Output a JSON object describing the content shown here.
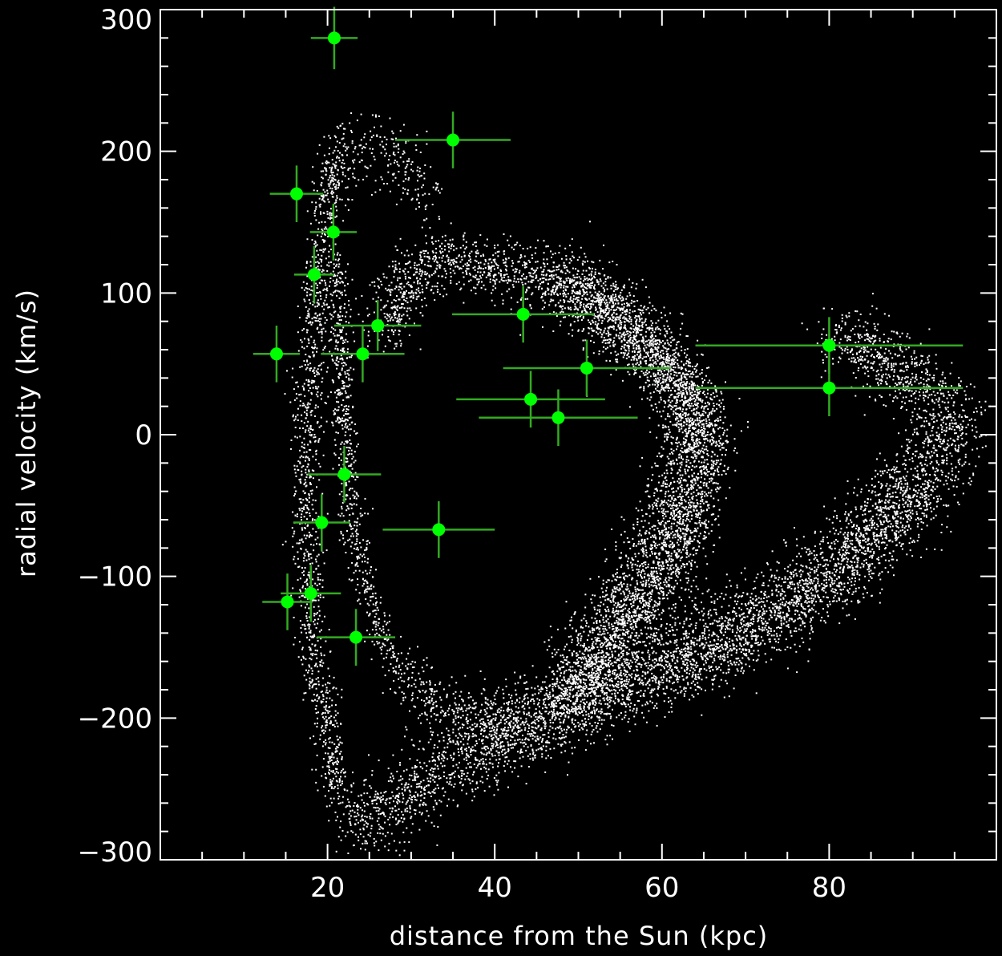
{
  "chart_data": {
    "type": "scatter",
    "xlabel": "distance from the Sun (kpc)",
    "ylabel": "radial velocity (km/s)",
    "xlim": [
      0,
      100
    ],
    "ylim": [
      -300,
      300
    ],
    "x_ticks": [
      20,
      40,
      60,
      80
    ],
    "y_ticks": [
      -300,
      -200,
      -100,
      0,
      100,
      200,
      300
    ],
    "grid": false,
    "colors": {
      "background": "#000000",
      "axes": "#ffffff",
      "simulation_points": "#ffffff",
      "observed_points": "#00ff00",
      "error_bars": "#33aa22"
    },
    "series": [
      {
        "role": "observed stars with error bars",
        "points": [
          {
            "x": 20.8,
            "y": 280,
            "xerr": 2.8,
            "yerr": 22
          },
          {
            "x": 35.0,
            "y": 208,
            "xerr": 6.9,
            "yerr": 20
          },
          {
            "x": 16.3,
            "y": 170,
            "xerr": 3.2,
            "yerr": 20
          },
          {
            "x": 20.7,
            "y": 143,
            "xerr": 2.8,
            "yerr": 20
          },
          {
            "x": 18.4,
            "y": 113,
            "xerr": 2.4,
            "yerr": 20
          },
          {
            "x": 43.4,
            "y": 85,
            "xerr": 8.5,
            "yerr": 20
          },
          {
            "x": 26.0,
            "y": 77,
            "xerr": 5.2,
            "yerr": 18
          },
          {
            "x": 13.9,
            "y": 57,
            "xerr": 2.8,
            "yerr": 20
          },
          {
            "x": 24.2,
            "y": 57,
            "xerr": 5.0,
            "yerr": 20
          },
          {
            "x": 80.0,
            "y": 63,
            "xerr": 16.0,
            "yerr": 20
          },
          {
            "x": 51.0,
            "y": 47,
            "xerr": 10.0,
            "yerr": 20
          },
          {
            "x": 80.0,
            "y": 33,
            "xerr": 16.0,
            "yerr": 20
          },
          {
            "x": 44.3,
            "y": 25,
            "xerr": 8.9,
            "yerr": 20
          },
          {
            "x": 47.6,
            "y": 12,
            "xerr": 9.5,
            "yerr": 20
          },
          {
            "x": 22.0,
            "y": -28,
            "xerr": 4.4,
            "yerr": 20
          },
          {
            "x": 19.3,
            "y": -62,
            "xerr": 3.4,
            "yerr": 20
          },
          {
            "x": 33.3,
            "y": -67,
            "xerr": 6.7,
            "yerr": 20
          },
          {
            "x": 15.2,
            "y": -118,
            "xerr": 3.0,
            "yerr": 20
          },
          {
            "x": 18.0,
            "y": -112,
            "xerr": 3.6,
            "yerr": 20
          },
          {
            "x": 23.4,
            "y": -143,
            "xerr": 4.7,
            "yerr": 20
          }
        ]
      },
      {
        "role": "simulated stream particles",
        "arms": [
          {
            "name": "inner loop left",
            "path": [
              [
                20.5,
                195
              ],
              [
                19.5,
                150
              ],
              [
                18.6,
                100
              ],
              [
                17.9,
                50
              ],
              [
                17.5,
                0
              ],
              [
                17.4,
                -50
              ],
              [
                17.6,
                -100
              ],
              [
                18.2,
                -150
              ],
              [
                19.6,
                -200
              ],
              [
                21.2,
                -255
              ]
            ],
            "sx": 0.9,
            "sy": 10,
            "n": 1200
          },
          {
            "name": "inner loop right",
            "path": [
              [
                21.0,
                120
              ],
              [
                21.5,
                60
              ],
              [
                22.0,
                0
              ],
              [
                22.7,
                -50
              ],
              [
                24.0,
                -100
              ],
              [
                26.5,
                -145
              ],
              [
                29.5,
                -165
              ]
            ],
            "sx": 0.7,
            "sy": 8,
            "n": 700
          },
          {
            "name": "upper connector",
            "path": [
              [
                20.0,
                170
              ],
              [
                22.0,
                200
              ],
              [
                25.5,
                205
              ],
              [
                29.0,
                195
              ],
              [
                32.5,
                165
              ]
            ],
            "sx": 0.9,
            "sy": 14,
            "n": 300
          },
          {
            "name": "middle arc top",
            "path": [
              [
                27.0,
                70
              ],
              [
                29.0,
                110
              ],
              [
                34.0,
                125
              ],
              [
                40.0,
                118
              ],
              [
                46.0,
                110
              ],
              [
                50.0,
                100
              ],
              [
                55.0,
                80
              ],
              [
                60.0,
                55
              ],
              [
                63.5,
                30
              ],
              [
                65.5,
                0
              ],
              [
                65.0,
                -40
              ],
              [
                62.0,
                -80
              ],
              [
                58.0,
                -120
              ],
              [
                53.0,
                -160
              ],
              [
                48.0,
                -190
              ]
            ],
            "sx": 1.6,
            "sy": 10,
            "n": 2800
          },
          {
            "name": "middle arc bright",
            "path": [
              [
                47.0,
                110
              ],
              [
                52.0,
                95
              ],
              [
                57.0,
                70
              ],
              [
                61.0,
                40
              ],
              [
                63.0,
                10
              ],
              [
                62.5,
                -30
              ],
              [
                59.0,
                -80
              ],
              [
                54.0,
                -130
              ],
              [
                49.0,
                -170
              ]
            ],
            "sx": 1.8,
            "sy": 14,
            "n": 2400
          },
          {
            "name": "lower loop",
            "path": [
              [
                23.0,
                -275
              ],
              [
                28.0,
                -260
              ],
              [
                33.0,
                -240
              ],
              [
                38.0,
                -225
              ],
              [
                45.0,
                -205
              ],
              [
                52.0,
                -190
              ],
              [
                60.0,
                -170
              ],
              [
                68.0,
                -150
              ],
              [
                75.0,
                -125
              ],
              [
                82.0,
                -95
              ],
              [
                88.0,
                -60
              ],
              [
                92.0,
                -30
              ],
              [
                94.5,
                0
              ],
              [
                94.0,
                20
              ],
              [
                91.0,
                35
              ],
              [
                88.0,
                45
              ],
              [
                84.0,
                60
              ],
              [
                81.0,
                72
              ]
            ],
            "sx": 2.2,
            "sy": 12,
            "n": 3800
          },
          {
            "name": "lower loop inner",
            "path": [
              [
                30.0,
                -175
              ],
              [
                34.0,
                -200
              ],
              [
                40.0,
                -200
              ],
              [
                46.0,
                -190
              ],
              [
                55.0,
                -165
              ],
              [
                64.0,
                -140
              ],
              [
                72.0,
                -115
              ],
              [
                80.0,
                -90
              ],
              [
                86.0,
                -55
              ],
              [
                90.0,
                -20
              ]
            ],
            "sx": 2.0,
            "sy": 12,
            "n": 1800
          }
        ]
      }
    ]
  }
}
